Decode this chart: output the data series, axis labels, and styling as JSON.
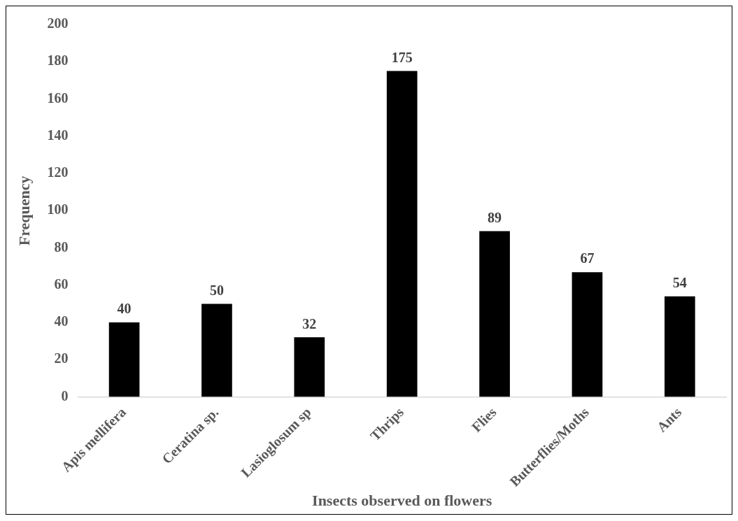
{
  "chart_data": {
    "type": "bar",
    "xlabel": "Insects observed on flowers",
    "ylabel": "Frequency",
    "categories": [
      "Apis mellifera",
      "Ceratina sp.",
      "Lasioglosum sp",
      "Thrips",
      "Flies",
      "Butterflies/Moths",
      "Ants"
    ],
    "values": [
      40,
      50,
      32,
      175,
      89,
      67,
      54
    ],
    "color": "#000000",
    "ylim": [
      0,
      200
    ],
    "yticks": [
      0,
      20,
      40,
      60,
      80,
      100,
      120,
      140,
      160,
      180,
      200
    ],
    "data_labels": true
  }
}
